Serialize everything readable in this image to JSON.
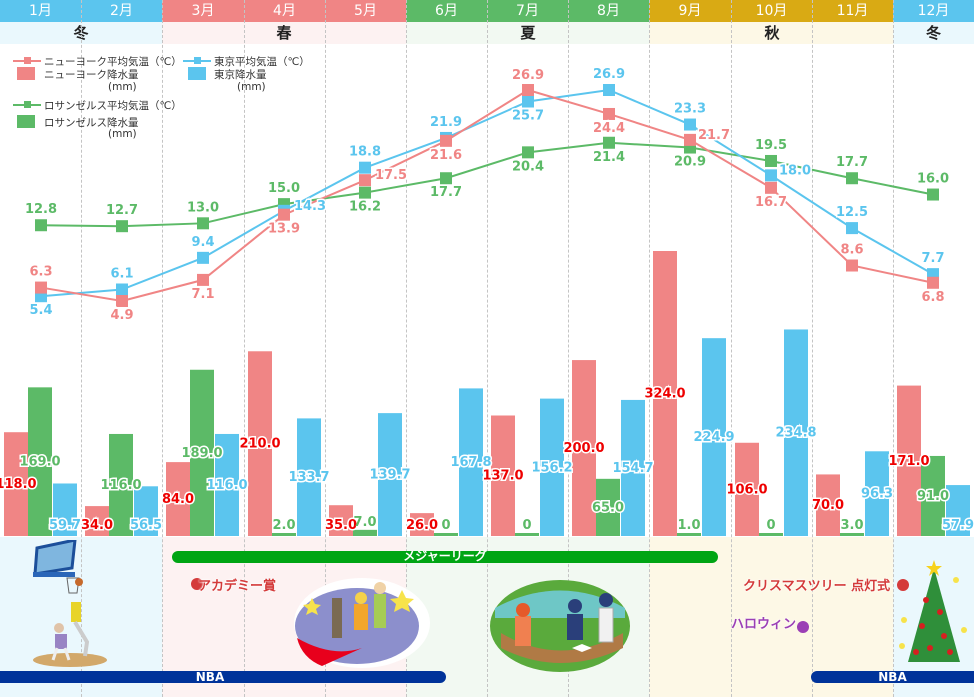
{
  "colors": {
    "winter": "#5bc5ee",
    "spring": "#f08585",
    "summer": "#5cba67",
    "autumn": "#d9aa14",
    "winter_bg": "#eaf8fd",
    "spring_bg": "#fdf2f2",
    "summer_bg": "#f2f9f2",
    "autumn_bg": "#fdf8e6",
    "ny": "#f08585",
    "la": "#5cba67",
    "tokyo": "#5bc5ee",
    "ny_bar_label": "#ee0000",
    "nba": "#00339a",
    "mlb": "#00a514",
    "academy": "#d43a3a",
    "christmas": "#d43a3a",
    "halloween": "#9b3fb5"
  },
  "months": [
    {
      "label": "1月",
      "season": "winter"
    },
    {
      "label": "2月",
      "season": "winter"
    },
    {
      "label": "3月",
      "season": "spring"
    },
    {
      "label": "4月",
      "season": "spring"
    },
    {
      "label": "5月",
      "season": "spring"
    },
    {
      "label": "6月",
      "season": "summer"
    },
    {
      "label": "7月",
      "season": "summer"
    },
    {
      "label": "8月",
      "season": "summer"
    },
    {
      "label": "9月",
      "season": "autumn"
    },
    {
      "label": "10月",
      "season": "autumn"
    },
    {
      "label": "11月",
      "season": "autumn"
    },
    {
      "label": "12月",
      "season": "winter"
    }
  ],
  "seasons": {
    "winter_a": "冬",
    "spring": "春",
    "summer": "夏",
    "autumn": "秋",
    "winter_b": "冬"
  },
  "legend": {
    "ny_temp": "ニューヨーク平均気温（℃）",
    "ny_precip": "ニューヨーク降水量",
    "ny_precip_unit": "(mm)",
    "tokyo_temp": "東京平均気温（℃）",
    "tokyo_precip": "東京降水量",
    "tokyo_precip_unit": "(mm)",
    "la_temp": "ロサンゼルス平均気温（℃）",
    "la_precip": "ロサンゼルス降水量",
    "la_precip_unit": "(mm)"
  },
  "chart_data": {
    "type": "bar+line",
    "categories": [
      "1月",
      "2月",
      "3月",
      "4月",
      "5月",
      "6月",
      "7月",
      "8月",
      "9月",
      "10月",
      "11月",
      "12月"
    ],
    "temperature_unit": "℃",
    "precipitation_unit": "mm",
    "temperature_series": [
      {
        "name": "ニューヨーク平均気温（℃）",
        "key": "ny",
        "values": [
          6.3,
          4.9,
          7.1,
          13.9,
          17.5,
          21.6,
          26.9,
          24.4,
          21.7,
          16.7,
          8.6,
          6.8
        ],
        "labels": [
          "6.3",
          "4.9",
          "7.1",
          "13.9",
          "17.5",
          "21.6",
          "26.9",
          "24.4",
          "21.7",
          "16.7",
          "8.6",
          "6.8"
        ]
      },
      {
        "name": "東京平均気温（℃）",
        "key": "tokyo",
        "values": [
          5.4,
          6.1,
          9.4,
          14.3,
          18.8,
          21.9,
          25.7,
          26.9,
          23.3,
          18.0,
          12.5,
          7.7
        ],
        "labels": [
          "5.4",
          "6.1",
          "9.4",
          "14.3",
          "18.8",
          "21.9",
          "25.7",
          "26.9",
          "23.3",
          "18.0",
          "12.5",
          "7.7"
        ]
      },
      {
        "name": "ロサンゼルス平均気温（℃）",
        "key": "la",
        "values": [
          12.8,
          12.7,
          13.0,
          15.0,
          16.2,
          17.7,
          20.4,
          21.4,
          20.9,
          19.5,
          17.7,
          16.0
        ],
        "labels": [
          "12.8",
          "12.7",
          "13.0",
          "15.0",
          "16.2",
          "17.7",
          "20.4",
          "21.4",
          "20.9",
          "19.5",
          "17.7",
          "16.0"
        ]
      }
    ],
    "precipitation_series": [
      {
        "name": "ニューヨーク降水量(mm)",
        "key": "ny",
        "values": [
          118.0,
          34.0,
          84.0,
          210.0,
          35.0,
          26.0,
          137.0,
          200.0,
          324.0,
          106.0,
          70.0,
          171.0
        ],
        "labels": [
          "118.0",
          "34.0",
          "84.0",
          "210.0",
          "35.0",
          "26.0",
          "137.0",
          "200.0",
          "324.0",
          "106.0",
          "70.0",
          "171.0"
        ]
      },
      {
        "name": "ロサンゼルス降水量(mm)",
        "key": "la",
        "values": [
          169.0,
          116.0,
          189.0,
          2.0,
          7.0,
          0,
          0,
          65.0,
          1.0,
          0,
          3.0,
          91.0
        ],
        "labels": [
          "169.0",
          "116.0",
          "189.0",
          "2.0",
          "7.0",
          "0",
          "0",
          "65.0",
          "1.0",
          "0",
          "3.0",
          "91.0"
        ]
      },
      {
        "name": "東京降水量(mm)",
        "key": "tokyo",
        "values": [
          59.7,
          56.5,
          116.0,
          133.7,
          139.7,
          167.8,
          156.2,
          154.7,
          224.9,
          234.8,
          96.3,
          57.9
        ],
        "labels": [
          "59.7",
          "56.5",
          "116.0",
          "133.7",
          "139.7",
          "167.8",
          "156.2",
          "154.7",
          "224.9",
          "234.8",
          "96.3",
          "57.9"
        ]
      }
    ],
    "temperature_range": [
      4.9,
      26.9
    ],
    "precipitation_range": [
      0,
      324
    ],
    "grid": "vertical dashed month separators",
    "legend_position": "top-left"
  },
  "events": {
    "mlb": "メジャーリーグ",
    "academy": "アカデミー賞",
    "christmas": "クリスマスツリー 点灯式",
    "halloween": "ハロウィン",
    "nba_a": "NBA",
    "nba_b": "NBA"
  }
}
